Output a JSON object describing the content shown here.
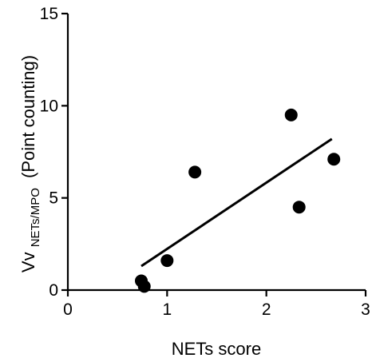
{
  "chart_data": {
    "type": "scatter",
    "xlabel": "NETs score",
    "ylabel_prefix": "Vv",
    "ylabel_subscript": "NETs/MPO",
    "ylabel_suffix": "(Point counting)",
    "xlim": [
      0,
      3
    ],
    "ylim": [
      0,
      15
    ],
    "x_ticks": [
      0,
      1,
      2,
      3
    ],
    "y_ticks": [
      0,
      5,
      10,
      15
    ],
    "x_tick_labels": [
      "0",
      "1",
      "2",
      "3"
    ],
    "y_tick_labels": [
      "0",
      "5",
      "10",
      "15"
    ],
    "points": [
      {
        "x": 0.74,
        "y": 0.5
      },
      {
        "x": 0.77,
        "y": 0.2
      },
      {
        "x": 1.0,
        "y": 1.6
      },
      {
        "x": 1.28,
        "y": 6.4
      },
      {
        "x": 2.25,
        "y": 9.5
      },
      {
        "x": 2.33,
        "y": 4.5
      },
      {
        "x": 2.68,
        "y": 7.1
      }
    ],
    "fit_line": {
      "x": [
        0.74,
        2.66
      ],
      "y": [
        1.3,
        8.2
      ]
    },
    "grid": false,
    "legend": "none"
  },
  "colors": {
    "marks": "#000000",
    "background": "#ffffff"
  }
}
